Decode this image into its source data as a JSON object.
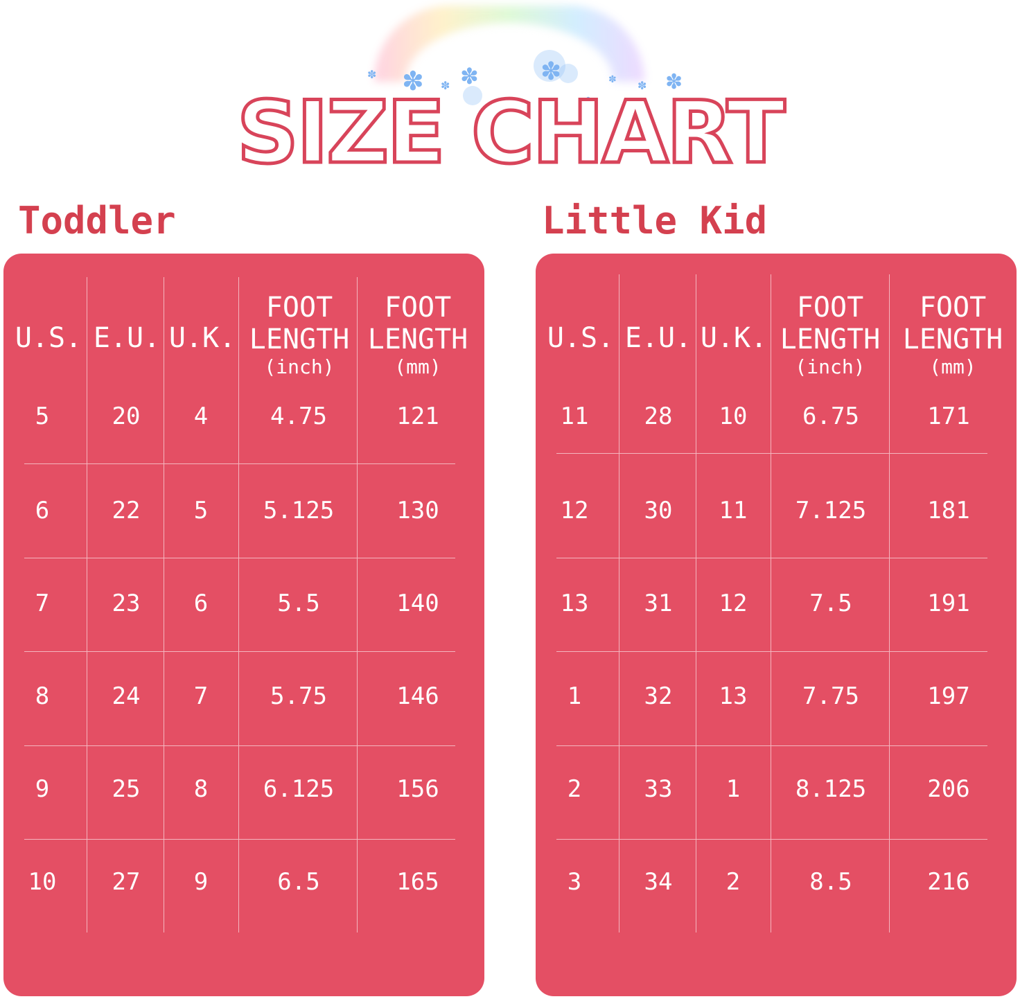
{
  "title": "SIZE CHART",
  "toddler": {
    "heading": "Toddler",
    "columns": {
      "us": "U.S.",
      "eu": "E.U.",
      "uk": "U.K.",
      "foot_inch_line1": "FOOT",
      "foot_inch_line2": "LENGTH",
      "foot_inch_unit": "(inch)",
      "foot_mm_line1": "FOOT",
      "foot_mm_line2": "LENGTH",
      "foot_mm_unit": "(mm)"
    },
    "rows": [
      [
        "5",
        "20",
        "4",
        "4.75",
        "121"
      ],
      [
        "6",
        "22",
        "5",
        "5.125",
        "130"
      ],
      [
        "7",
        "23",
        "6",
        "5.5",
        "140"
      ],
      [
        "8",
        "24",
        "7",
        "5.75",
        "146"
      ],
      [
        "9",
        "25",
        "8",
        "6.125",
        "156"
      ],
      [
        "10",
        "27",
        "9",
        "6.5",
        "165"
      ]
    ]
  },
  "little_kid": {
    "heading": "Little Kid",
    "columns": {
      "us": "U.S.",
      "eu": "E.U.",
      "uk": "U.K.",
      "foot_inch_line1": "FOOT",
      "foot_inch_line2": "LENGTH",
      "foot_inch_unit": "(inch)",
      "foot_mm_line1": "FOOT",
      "foot_mm_line2": "LENGTH",
      "foot_mm_unit": "(mm)"
    },
    "rows": [
      [
        "11",
        "28",
        "10",
        "6.75",
        "171"
      ],
      [
        "12",
        "30",
        "11",
        "7.125",
        "181"
      ],
      [
        "13",
        "31",
        "12",
        "7.5",
        "191"
      ],
      [
        "1",
        "32",
        "13",
        "7.75",
        "197"
      ],
      [
        "2",
        "33",
        "1",
        "8.125",
        "206"
      ],
      [
        "3",
        "34",
        "2",
        "8.5",
        "216"
      ]
    ]
  },
  "colors": {
    "card": "#e44f64",
    "title_stroke": "#d8445a",
    "heading": "#d4404f",
    "accent_flowers": "#7fb4f2"
  }
}
